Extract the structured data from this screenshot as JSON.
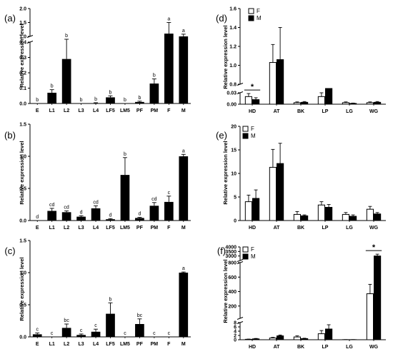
{
  "chart_data": [
    {
      "id": "a",
      "panel_label": "(a)",
      "type": "bar",
      "ylabel": "Relative expression level",
      "categories": [
        "E",
        "L1",
        "L2",
        "L3",
        "L4",
        "LF5",
        "LM5",
        "PF",
        "PM",
        "F",
        "M"
      ],
      "values": [
        0.0,
        0.07,
        0.29,
        0.0,
        0.0,
        0.04,
        0.0,
        0.01,
        0.13,
        1.1,
        1.0
      ],
      "errors": [
        0.0,
        0.02,
        0.12,
        0.0,
        0.005,
        0.01,
        0.0,
        0.005,
        0.03,
        0.4,
        0.08
      ],
      "letters": [
        "b",
        "b",
        "b",
        "b",
        "b",
        "b",
        "b",
        "b",
        "b",
        "a",
        "a"
      ],
      "ylim": [
        0,
        2.0
      ],
      "axis_break": {
        "from": 0.5,
        "to": 0.9
      },
      "yticks": [
        "0.0",
        "0.1",
        "0.2",
        "0.3",
        "0.4",
        "1.0",
        "1.5",
        "2.0"
      ]
    },
    {
      "id": "b",
      "panel_label": "(b)",
      "type": "bar",
      "ylabel": "Relative expression level",
      "categories": [
        "E",
        "L1",
        "L2",
        "L3",
        "L4",
        "LF5",
        "LM5",
        "PF",
        "PM",
        "F",
        "M"
      ],
      "values": [
        0.0,
        0.15,
        0.13,
        0.06,
        0.19,
        0.02,
        0.71,
        0.04,
        0.23,
        0.29,
        1.0
      ],
      "errors": [
        0.0,
        0.04,
        0.02,
        0.015,
        0.04,
        0.01,
        0.27,
        0.01,
        0.05,
        0.09,
        0.03
      ],
      "letters": [
        "d",
        "cd",
        "cd",
        "d",
        "cd",
        "d",
        "b",
        "d",
        "cd",
        "c",
        "a"
      ],
      "ylim": [
        0,
        1.5
      ],
      "yticks": [
        "0.0",
        "0.5",
        "1.0",
        "1.5"
      ]
    },
    {
      "id": "c",
      "panel_label": "(c)",
      "type": "bar",
      "ylabel": "Relative expression level",
      "categories": [
        "E",
        "L1",
        "L2",
        "L3",
        "L4",
        "LF5",
        "LM5",
        "PF",
        "PM",
        "F",
        "M"
      ],
      "values": [
        0.04,
        0.0,
        0.14,
        0.03,
        0.08,
        0.36,
        0.0,
        0.2,
        0.0,
        0.0,
        1.0
      ],
      "errors": [
        0.02,
        0.0,
        0.06,
        0.015,
        0.04,
        0.17,
        0.0,
        0.08,
        0.0,
        0.0,
        0.01
      ],
      "letters": [
        "c",
        "c",
        "bc",
        "c",
        "c",
        "b",
        "c",
        "bc",
        "c",
        "c",
        "a"
      ],
      "ylim": [
        0,
        1.5
      ],
      "yticks": [
        "0.0",
        "0.5",
        "1.0",
        "1.5"
      ]
    },
    {
      "id": "d",
      "panel_label": "(d)",
      "type": "bar",
      "ylabel": "Relative expression level",
      "categories": [
        "HD",
        "AT",
        "BK",
        "LP",
        "LG",
        "WG"
      ],
      "series": [
        {
          "name": "F",
          "values": [
            0.02,
            1.03,
            0.004,
            0.02,
            0.004,
            0.004
          ],
          "errors": [
            0.008,
            0.19,
            0.002,
            0.01,
            0.002,
            0.002
          ]
        },
        {
          "name": "M",
          "values": [
            0.012,
            1.06,
            0.005,
            0.031,
            0.002,
            0.005
          ],
          "errors": [
            0.005,
            0.34,
            0.002,
            0.01,
            0.001,
            0.002
          ]
        }
      ],
      "ylim": [
        0,
        1.6
      ],
      "axis_break": {
        "from": 0.04,
        "to": 0.8
      },
      "yticks": [
        "0.00",
        "0.03",
        "0.8",
        "1.0",
        "1.2",
        "1.4",
        "1.6"
      ],
      "significance": [
        {
          "category": "HD",
          "mark": "*"
        }
      ]
    },
    {
      "id": "e",
      "panel_label": "(e)",
      "type": "bar",
      "ylabel": "Relative expression level",
      "categories": [
        "HD",
        "AT",
        "BK",
        "LP",
        "LG",
        "WG"
      ],
      "series": [
        {
          "name": "F",
          "values": [
            4.0,
            11.3,
            1.3,
            3.3,
            1.3,
            2.4
          ],
          "errors": [
            1.4,
            3.8,
            0.6,
            0.7,
            0.4,
            0.6
          ]
        },
        {
          "name": "M",
          "values": [
            4.7,
            12.1,
            1.0,
            2.8,
            0.9,
            1.4
          ],
          "errors": [
            1.8,
            4.3,
            0.2,
            0.6,
            0.3,
            0.3
          ]
        }
      ],
      "ylim": [
        0,
        20
      ],
      "yticks": [
        "0",
        "5",
        "10",
        "15",
        "20"
      ]
    },
    {
      "id": "f",
      "panel_label": "(f)",
      "type": "bar",
      "ylabel": "Relative expression level",
      "categories": [
        "HD",
        "AT",
        "BK",
        "LP",
        "LG",
        "WG"
      ],
      "series": [
        {
          "name": "F",
          "values": [
            0.2,
            0.8,
            1.3,
            2.8,
            0.05,
            370
          ],
          "errors": [
            0.1,
            0.3,
            0.5,
            1.5,
            0.02,
            130
          ]
        },
        {
          "name": "M",
          "values": [
            0.4,
            1.8,
            0.5,
            5.0,
            0.05,
            3000
          ],
          "errors": [
            0.2,
            0.4,
            0.2,
            2.0,
            0.02,
            200
          ]
        }
      ],
      "ylim": [
        0,
        4000
      ],
      "axis_breaks": [
        {
          "from": 8,
          "to": 30
        },
        {
          "from": 800,
          "to": 2500
        }
      ],
      "yticks": [
        "0",
        "2",
        "4",
        "6",
        "8",
        "200",
        "400",
        "600",
        "800",
        "3000",
        "3500",
        "4000"
      ],
      "significance": [
        {
          "category": "WG",
          "mark": "*"
        }
      ]
    }
  ]
}
